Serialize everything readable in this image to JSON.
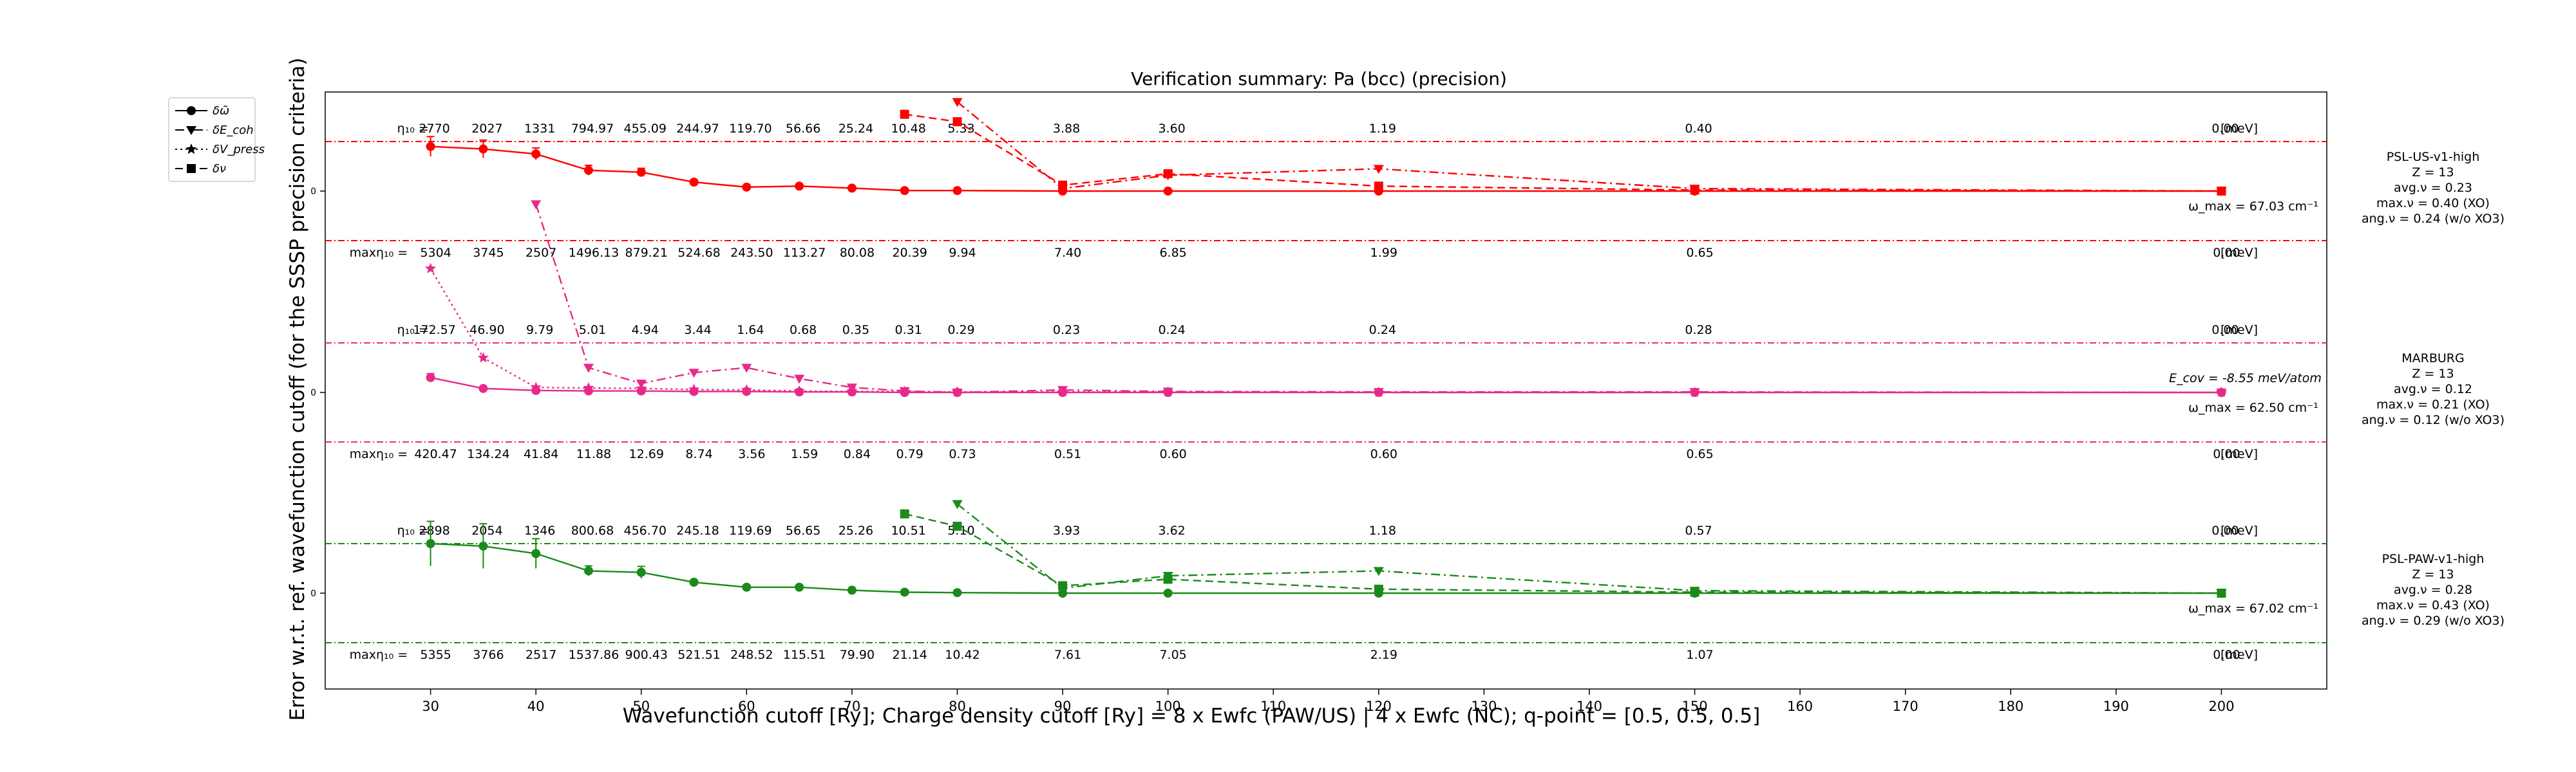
{
  "chart_data": {
    "type": "line",
    "title": "Verification summary: Pa (bcc) (precision)",
    "xlabel": "Wavefunction cutoff [Ry]; Charge density cutoff [Ry] = 8 x Ewfc (PAW/US) | 4 x Ewfc (NC); q-point = [0.5, 0.5, 0.5]",
    "ylabel": "Error w.r.t. ref. wavefunction cutoff (for the SSSP precision criteria)",
    "xlim": [
      20,
      210
    ],
    "x_ticks": [
      30,
      40,
      50,
      60,
      70,
      80,
      90,
      100,
      110,
      120,
      130,
      140,
      150,
      160,
      170,
      180,
      190,
      200
    ],
    "x": [
      30,
      35,
      40,
      45,
      50,
      55,
      60,
      65,
      70,
      75,
      80,
      90,
      100,
      120,
      150,
      200
    ],
    "grid": false,
    "legend_position": "upper-left-outside",
    "legend": [
      {
        "label": "δω̃",
        "style": "solid",
        "marker": "circle"
      },
      {
        "label": "δE_coh",
        "style": "dashdot",
        "marker": "triangle-down"
      },
      {
        "label": "δV_press",
        "style": "dotted",
        "marker": "star"
      },
      {
        "label": "δν",
        "style": "dashed",
        "marker": "square"
      }
    ],
    "top_label_prefix": "η₁₀ =",
    "bottom_label_prefix": "maxη₁₀ =",
    "unit_label": "[meV]",
    "zero_tick": "0",
    "panels": [
      {
        "name": "PSL-US-v1-high",
        "color": "#ff0000",
        "info": [
          "PSL-US-v1-high",
          "Z = 13",
          "avg.ν = 0.23",
          "max.ν = 0.40 (XO)",
          "ang.ν = 0.24 (w/o XO3)"
        ],
        "omega_label": "ω_max = 67.03 cm⁻¹",
        "ecov_label": "",
        "top_values": [
          "2770",
          "2027",
          "1331",
          "794.97",
          "455.09",
          "244.97",
          "119.70",
          "56.66",
          "25.24",
          "10.48",
          "5.33",
          "3.88",
          "3.60",
          "1.19",
          "0.40",
          "0.00"
        ],
        "bottom_values": [
          "5304",
          "3745",
          "2507",
          "1496.13",
          "879.21",
          "524.68",
          "243.50",
          "113.27",
          "80.08",
          "20.39",
          "9.94",
          "7.40",
          "6.85",
          "1.99",
          "0.65",
          "0.00"
        ],
        "phonon": [
          0.9,
          0.85,
          0.75,
          0.42,
          0.38,
          0.18,
          0.08,
          0.1,
          0.06,
          0.01,
          0.01,
          0.0,
          0.0,
          0.0,
          0.0,
          0.0
        ],
        "phonon_err": [
          0.2,
          0.18,
          0.12,
          0.1,
          0.08,
          0.05,
          0.02,
          0.03,
          0.02,
          0.0,
          0.0,
          0.0,
          0.0,
          0.0,
          0.0,
          0.0
        ],
        "ecoh": [
          null,
          null,
          null,
          null,
          null,
          null,
          null,
          null,
          null,
          null,
          1.8,
          0.05,
          0.32,
          0.45,
          0.05,
          0.0
        ],
        "press": [
          null,
          null,
          null,
          null,
          null,
          null,
          null,
          null,
          null,
          null,
          null,
          null,
          null,
          null,
          null,
          null
        ],
        "nu": [
          null,
          null,
          null,
          null,
          null,
          null,
          null,
          null,
          null,
          1.55,
          1.4,
          0.12,
          0.35,
          0.1,
          0.02,
          0.0
        ]
      },
      {
        "name": "MARBURG",
        "color": "#e7298a",
        "info": [
          "MARBURG",
          "Z = 13",
          "avg.ν = 0.12",
          "max.ν = 0.21 (XO)",
          "ang.ν = 0.12 (w/o XO3)"
        ],
        "omega_label": "ω_max = 62.50 cm⁻¹",
        "ecov_label": "E_cov = -8.55 meV/atom",
        "top_values": [
          "172.57",
          "46.90",
          "9.79",
          "5.01",
          "4.94",
          "3.44",
          "1.64",
          "0.68",
          "0.35",
          "0.31",
          "0.29",
          "0.23",
          "0.24",
          "0.24",
          "0.28",
          "0.00"
        ],
        "bottom_values": [
          "420.47",
          "134.24",
          "41.84",
          "11.88",
          "12.69",
          "8.74",
          "3.56",
          "1.59",
          "0.84",
          "0.79",
          "0.73",
          "0.51",
          "0.60",
          "0.60",
          "0.65",
          "0.00"
        ],
        "phonon": [
          0.3,
          0.08,
          0.04,
          0.03,
          0.03,
          0.02,
          0.02,
          0.01,
          0.01,
          0.0,
          0.0,
          0.0,
          0.0,
          0.0,
          0.0,
          0.0
        ],
        "phonon_err": [
          0.08,
          0.0,
          0.0,
          0.0,
          0.0,
          0.0,
          0.0,
          0.0,
          0.0,
          0.0,
          0.0,
          0.0,
          0.0,
          0.0,
          0.0,
          0.0
        ],
        "ecoh": [
          null,
          null,
          3.8,
          0.5,
          0.18,
          0.4,
          0.5,
          0.28,
          0.1,
          0.03,
          0.0,
          0.05,
          0.02,
          0.01,
          0.01,
          0.0
        ],
        "press": [
          2.5,
          0.7,
          0.1,
          0.09,
          0.08,
          0.06,
          0.05,
          0.03,
          0.02,
          0.02,
          0.01,
          0.01,
          0.01,
          0.0,
          0.0,
          0.0
        ],
        "nu": [
          null,
          null,
          null,
          null,
          null,
          null,
          null,
          null,
          null,
          null,
          null,
          null,
          null,
          null,
          null,
          null
        ]
      },
      {
        "name": "PSL-PAW-v1-high",
        "color": "#1a8a1a",
        "info": [
          "PSL-PAW-v1-high",
          "Z = 13",
          "avg.ν = 0.28",
          "max.ν = 0.43 (XO)",
          "ang.ν = 0.29 (w/o XO3)"
        ],
        "omega_label": "ω_max = 67.02 cm⁻¹",
        "ecov_label": "",
        "top_values": [
          "2898",
          "2054",
          "1346",
          "800.68",
          "456.70",
          "245.18",
          "119.69",
          "56.65",
          "25.26",
          "10.51",
          "5.10",
          "3.93",
          "3.62",
          "1.18",
          "0.57",
          "0.00"
        ],
        "bottom_values": [
          "5355",
          "3766",
          "2517",
          "1537.86",
          "900.43",
          "521.51",
          "248.52",
          "115.51",
          "79.90",
          "21.14",
          "10.42",
          "7.61",
          "7.05",
          "2.19",
          "1.07",
          "0.00"
        ],
        "phonon": [
          1.0,
          0.95,
          0.8,
          0.45,
          0.42,
          0.22,
          0.12,
          0.12,
          0.06,
          0.02,
          0.01,
          0.0,
          0.0,
          0.0,
          0.0,
          0.0
        ],
        "phonon_err": [
          0.45,
          0.45,
          0.3,
          0.1,
          0.12,
          0.05,
          0.0,
          0.0,
          0.0,
          0.0,
          0.0,
          0.0,
          0.0,
          0.0,
          0.0,
          0.0
        ],
        "ecoh": [
          null,
          null,
          null,
          null,
          null,
          null,
          null,
          null,
          null,
          null,
          1.8,
          0.1,
          0.35,
          0.45,
          0.05,
          0.0
        ],
        "press": [
          null,
          null,
          null,
          null,
          null,
          null,
          null,
          null,
          null,
          null,
          null,
          null,
          null,
          null,
          null,
          null
        ],
        "nu": [
          null,
          null,
          null,
          null,
          null,
          null,
          null,
          null,
          null,
          1.6,
          1.35,
          0.15,
          0.28,
          0.08,
          0.02,
          0.0
        ]
      }
    ]
  }
}
